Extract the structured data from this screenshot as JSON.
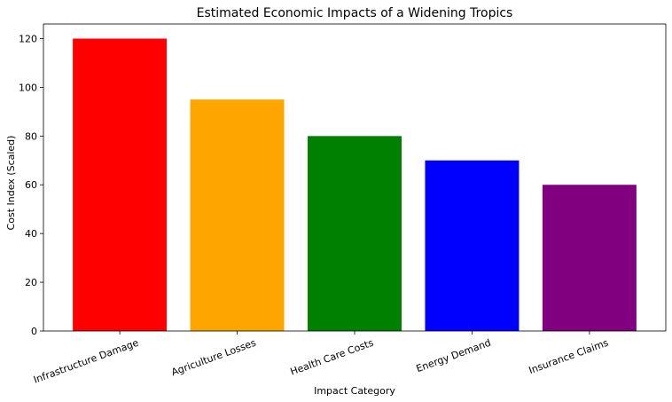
{
  "chart_data": {
    "type": "bar",
    "title": "Estimated Economic Impacts of a Widening Tropics",
    "xlabel": "Impact Category",
    "ylabel": "Cost Index (Scaled)",
    "categories": [
      "Infrastructure Damage",
      "Agriculture Losses",
      "Health Care Costs",
      "Energy Demand",
      "Insurance Claims"
    ],
    "values": [
      120,
      95,
      80,
      70,
      60
    ],
    "colors": [
      "#ff0000",
      "#ffa500",
      "#008000",
      "#0000ff",
      "#800080"
    ],
    "ylim": [
      0,
      126
    ],
    "yticks": [
      0,
      20,
      40,
      60,
      80,
      100,
      120
    ],
    "grid": false,
    "legend": "none"
  }
}
